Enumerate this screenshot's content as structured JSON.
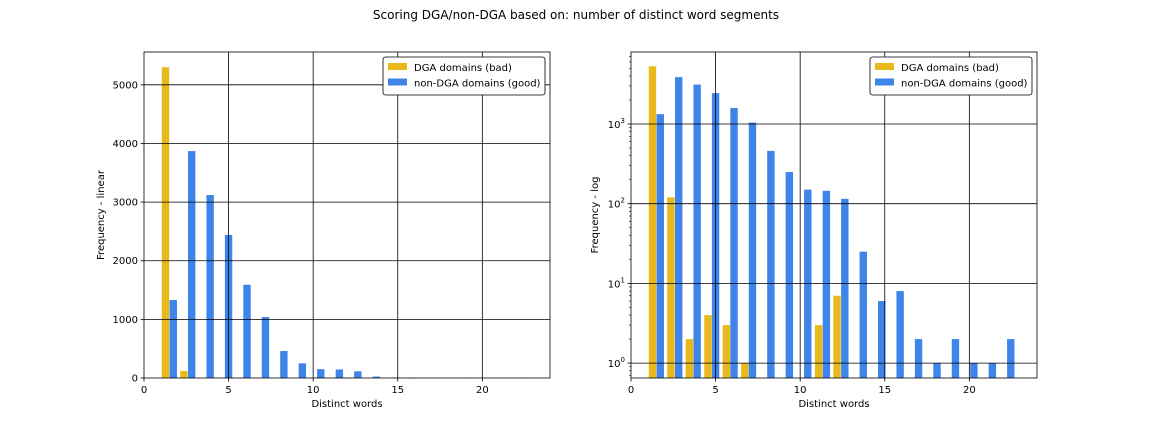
{
  "figure_title": "Scoring DGA/non-DGA based on: number of distinct word segments",
  "colors": {
    "dga": "#e8b91b",
    "nondga": "#3f84e8"
  },
  "chart_data": [
    {
      "type": "bar",
      "scale": "linear",
      "xlabel": "Distinct words",
      "ylabel": "Frequency - linear",
      "xlim": [
        0,
        24
      ],
      "ylim": [
        0,
        5560
      ],
      "xticks": [
        0,
        5,
        10,
        15,
        20
      ],
      "yticks": [
        0,
        1000,
        2000,
        3000,
        4000,
        5000
      ],
      "grid": true,
      "legend_position": "top-right",
      "series": [
        {
          "name": "DGA domains (bad)",
          "color": "#e8b91b",
          "x": [
            1.27,
            2.36,
            3.45,
            4.55,
            5.64,
            6.73,
            11.09,
            12.18
          ],
          "values": [
            5300,
            120,
            2,
            4,
            3,
            1,
            3,
            7
          ]
        },
        {
          "name": "non-DGA domains (good)",
          "color": "#3f84e8",
          "x": [
            1.73,
            2.82,
            3.91,
            5.0,
            6.09,
            7.18,
            8.27,
            9.36,
            10.45,
            11.55,
            12.64,
            13.73,
            14.82,
            15.91,
            17.0,
            18.09,
            19.18,
            20.27,
            21.36,
            22.45
          ],
          "values": [
            1330,
            3870,
            3120,
            2440,
            1590,
            1040,
            460,
            250,
            150,
            145,
            115,
            25,
            6,
            8,
            2,
            1,
            2,
            1,
            1,
            2
          ]
        }
      ]
    },
    {
      "type": "bar",
      "scale": "log",
      "xlabel": "Distinct words",
      "ylabel": "Frequency - log",
      "xlim": [
        0,
        24
      ],
      "ylim": [
        0.65,
        8000
      ],
      "xticks": [
        0,
        5,
        10,
        15,
        20
      ],
      "yticks": [
        1,
        10,
        100,
        1000
      ],
      "ytick_exponents": [
        "0",
        "1",
        "2",
        "3"
      ],
      "ytick_base": "10",
      "grid": true,
      "legend_position": "top-right",
      "series": [
        {
          "name": "DGA domains (bad)",
          "color": "#e8b91b",
          "x": [
            1.27,
            2.36,
            3.45,
            4.55,
            5.64,
            6.73,
            11.09,
            12.18
          ],
          "values": [
            5300,
            120,
            2,
            4,
            3,
            1,
            3,
            7
          ]
        },
        {
          "name": "non-DGA domains (good)",
          "color": "#3f84e8",
          "x": [
            1.73,
            2.82,
            3.91,
            5.0,
            6.09,
            7.18,
            8.27,
            9.36,
            10.45,
            11.55,
            12.64,
            13.73,
            14.82,
            15.91,
            17.0,
            18.09,
            19.18,
            20.27,
            21.36,
            22.45
          ],
          "values": [
            1330,
            3870,
            3120,
            2440,
            1590,
            1040,
            460,
            250,
            150,
            145,
            115,
            25,
            6,
            8,
            2,
            1,
            2,
            1,
            1,
            2
          ]
        }
      ]
    }
  ]
}
